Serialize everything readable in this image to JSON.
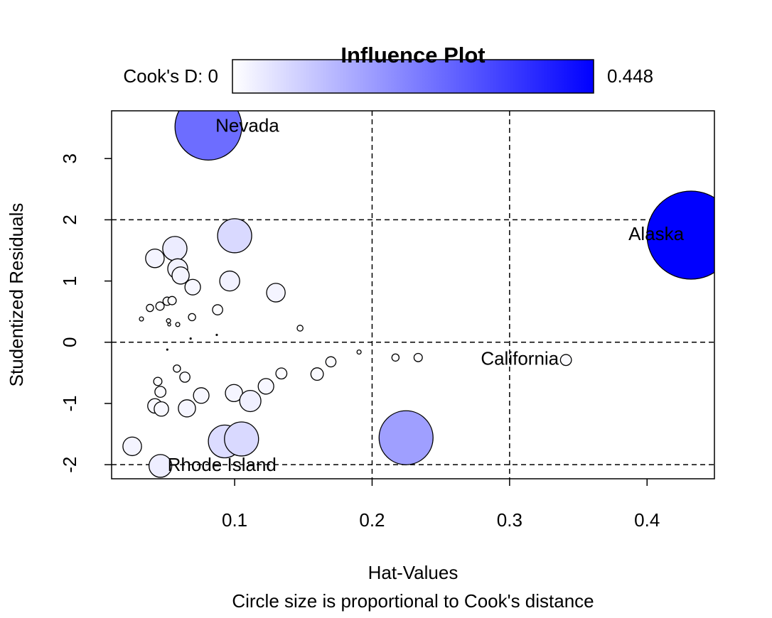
{
  "chart_data": {
    "type": "scatter",
    "title": "Influence Plot",
    "x_label": "Hat-Values",
    "y_label": "Studentized Residuals",
    "subtitle": "Circle size is proportional to Cook's distance",
    "colorbar": {
      "label": "Cook's D:",
      "min": 0,
      "max": 0.448,
      "colors": [
        "#ffffff",
        "#0000ff"
      ]
    },
    "xlim": [
      0.0105,
      0.449
    ],
    "ylim": [
      -2.23,
      3.78
    ],
    "xticks": [
      0.1,
      0.2,
      0.3,
      0.4
    ],
    "yticks": [
      -2,
      -1,
      0,
      1,
      2,
      3
    ],
    "vlines": [
      0.2,
      0.3
    ],
    "hlines": [
      -2,
      0,
      2
    ],
    "x": [
      0.0809,
      0.432,
      0.341,
      0.046,
      0.2247,
      0.1,
      0.0565,
      0.042,
      0.0586,
      0.0607,
      0.0964,
      0.0695,
      0.13,
      0.0876,
      0.0384,
      0.0457,
      0.0509,
      0.0545,
      0.069,
      0.0322,
      0.0519,
      0.0524,
      0.0586,
      0.1476,
      0.087,
      0.068,
      0.051,
      0.1905,
      0.217,
      0.2335,
      0.17,
      0.058,
      0.16,
      0.134,
      0.0638,
      0.0441,
      0.1228,
      0.046,
      0.0995,
      0.0757,
      0.1114,
      0.042,
      0.0467,
      0.0653,
      0.0255,
      0.0928,
      0.105
    ],
    "y": [
      3.52,
      1.75,
      -0.29,
      -2.02,
      -1.56,
      1.74,
      1.53,
      1.37,
      1.2,
      1.09,
      1.0,
      0.9,
      0.81,
      0.53,
      0.56,
      0.59,
      0.67,
      0.68,
      0.41,
      0.38,
      0.35,
      0.29,
      0.29,
      0.23,
      0.12,
      0.06,
      -0.12,
      -0.16,
      -0.25,
      -0.25,
      -0.32,
      -0.43,
      -0.52,
      -0.51,
      -0.57,
      -0.64,
      -0.72,
      -0.81,
      -0.83,
      -0.87,
      -0.96,
      -1.04,
      -1.09,
      -1.08,
      -1.7,
      -1.62,
      -1.58
    ],
    "size": [
      0.257,
      0.448,
      0.007,
      0.03,
      0.168,
      0.067,
      0.034,
      0.02,
      0.023,
      0.017,
      0.023,
      0.014,
      0.02,
      0.006,
      0.003,
      0.004,
      0.004,
      0.004,
      0.003,
      0.001,
      0.001,
      0.0005,
      0.001,
      0.002,
      0.0001,
      0.0001,
      0.0001,
      0.001,
      0.003,
      0.004,
      0.006,
      0.003,
      0.009,
      0.007,
      0.006,
      0.004,
      0.014,
      0.007,
      0.017,
      0.014,
      0.026,
      0.012,
      0.012,
      0.017,
      0.02,
      0.062,
      0.067
    ],
    "point_labels": [
      "Nevada",
      "Alaska",
      "California",
      "Rhode Island",
      null,
      null,
      null,
      null,
      null,
      null,
      null,
      null,
      null,
      null,
      null,
      null,
      null,
      null,
      null,
      null,
      null,
      null,
      null,
      null,
      null,
      null,
      null,
      null,
      null,
      null,
      null,
      null,
      null,
      null,
      null,
      null,
      null,
      null,
      null,
      null,
      null,
      null,
      null,
      null,
      null,
      null,
      null
    ]
  }
}
